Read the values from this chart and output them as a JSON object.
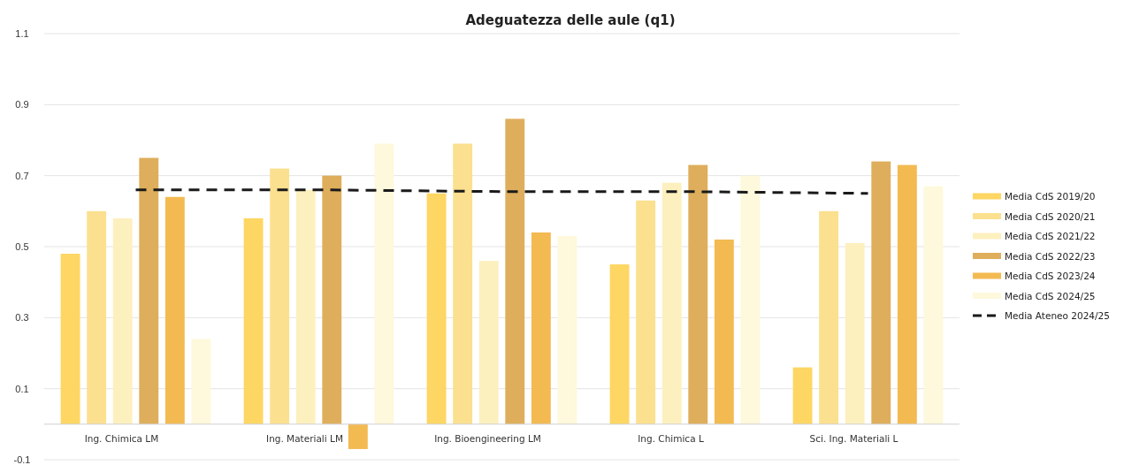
{
  "chart_data": {
    "type": "bar",
    "title": "Adeguatezza delle aule (q1)",
    "categories": [
      "Ing. Chimica LM",
      "Ing. Materiali LM",
      "Ing. Bioengineering LM",
      "Ing. Chimica L",
      "Sci. Ing. Materiali L"
    ],
    "series": [
      {
        "name": "Media CdS 2019/20",
        "color": "#fdd663",
        "values": [
          0.48,
          0.58,
          0.65,
          0.45,
          0.16
        ]
      },
      {
        "name": "Media CdS 2020/21",
        "color": "#fbe08f",
        "values": [
          0.6,
          0.72,
          0.79,
          0.63,
          0.6
        ]
      },
      {
        "name": "Media CdS 2021/22",
        "color": "#fdf0bf",
        "values": [
          0.58,
          0.66,
          0.46,
          0.68,
          0.51
        ]
      },
      {
        "name": "Media CdS 2022/23",
        "color": "#deae5c",
        "values": [
          0.75,
          0.7,
          0.86,
          0.73,
          0.74
        ]
      },
      {
        "name": "Media CdS 2023/24",
        "color": "#f3ba52",
        "values": [
          0.64,
          -0.07,
          0.54,
          0.52,
          0.73
        ]
      },
      {
        "name": "Media CdS 2024/25",
        "color": "#fef8dc",
        "values": [
          0.24,
          0.79,
          0.53,
          0.7,
          0.67
        ]
      },
      {
        "name": "Media Ateneo 2024/25",
        "type": "line",
        "color": "#1a1a1a",
        "line_style": "dashed",
        "marker": "none",
        "values": [
          0.66,
          0.66,
          0.655,
          0.655,
          0.65
        ]
      }
    ],
    "ylim": [
      -0.1,
      1.1
    ],
    "yticks": [
      -0.1,
      0.1,
      0.3,
      0.5,
      0.7,
      0.9,
      1.1
    ],
    "grid": "y",
    "legend": "right"
  }
}
